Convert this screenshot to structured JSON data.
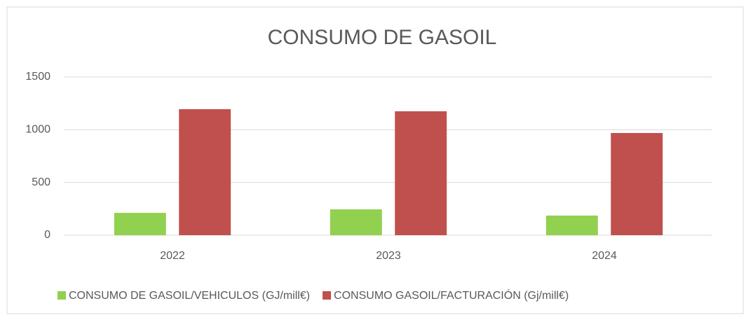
{
  "chart_data": {
    "type": "bar",
    "title": "CONSUMO DE GASOIL",
    "categories": [
      "2022",
      "2023",
      "2024"
    ],
    "series": [
      {
        "name": "CONSUMO DE GASOIL/VEHICULOS (GJ/mill€)",
        "color": "#92d050",
        "values": [
          212,
          245,
          186
        ]
      },
      {
        "name": "CONSUMO GASOIL/FACTURACIÓN (Gj/mill€)",
        "color": "#c0504d",
        "values": [
          1195,
          1175,
          969
        ]
      }
    ],
    "ylim": [
      0,
      1500
    ],
    "yticks": [
      0,
      500,
      1000,
      1500
    ],
    "grid": true,
    "legend": "bottom"
  }
}
